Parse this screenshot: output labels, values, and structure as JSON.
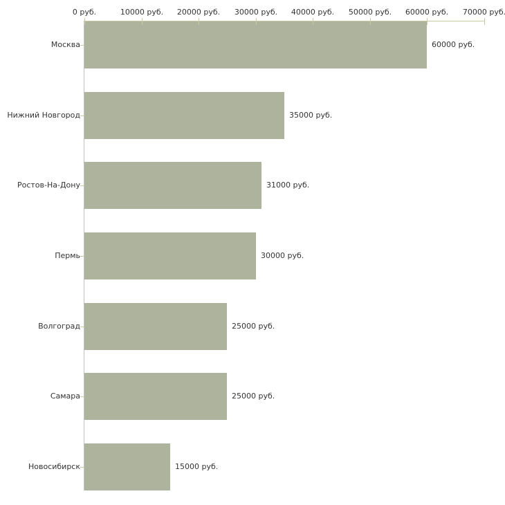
{
  "chart_data": {
    "type": "bar",
    "orientation": "horizontal",
    "categories": [
      "Москва",
      "Нижний Новгород",
      "Ростов-На-Дону",
      "Пермь",
      "Волгоград",
      "Самара",
      "Новосибирск"
    ],
    "values": [
      60000,
      35000,
      31000,
      30000,
      25000,
      25000,
      15000
    ],
    "value_labels": [
      "60000 руб.",
      "35000 руб.",
      "31000 руб.",
      "30000 руб.",
      "25000 руб.",
      "25000 руб.",
      "15000 руб."
    ],
    "x_axis": {
      "position": "top",
      "min": 0,
      "max": 70000,
      "tick_interval": 10000,
      "tick_values": [
        0,
        10000,
        20000,
        30000,
        40000,
        50000,
        60000,
        70000
      ],
      "tick_labels": [
        "0 руб.",
        "10000 руб.",
        "20000 руб.",
        "30000 руб.",
        "40000 руб.",
        "50000 руб.",
        "60000 руб.",
        "70000 руб."
      ]
    },
    "grid": false,
    "legend": false,
    "colors": {
      "bar_fill": "#adb39c",
      "value_axis_line": "#c8c8a2",
      "tick_mark": "#c8c8a2",
      "category_axis_line": "#c2c2c2",
      "text": "#333333",
      "background": "#ffffff"
    }
  }
}
